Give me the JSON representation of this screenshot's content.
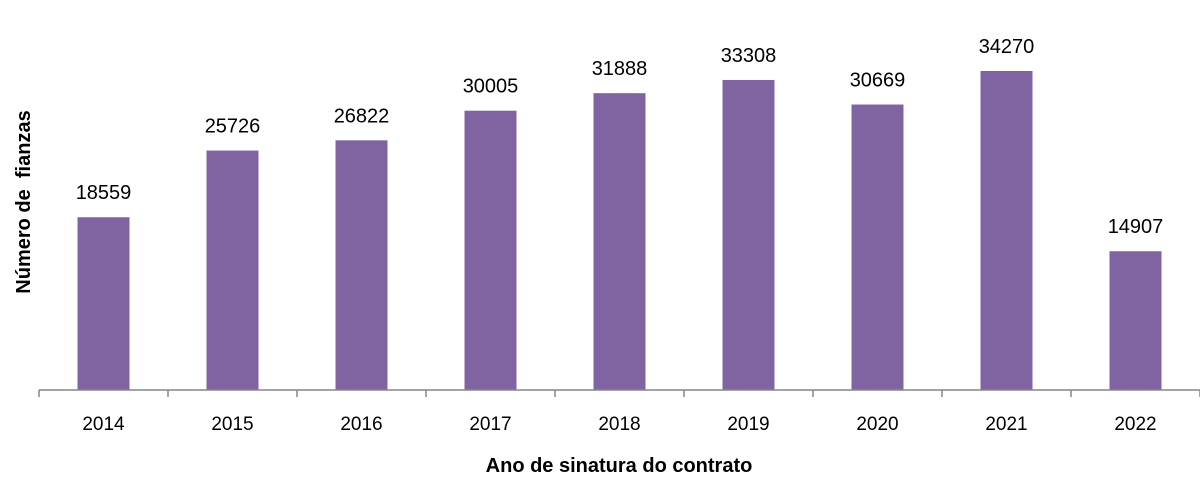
{
  "chart_data": {
    "type": "bar",
    "categories": [
      "2014",
      "2015",
      "2016",
      "2017",
      "2018",
      "2019",
      "2020",
      "2021",
      "2022"
    ],
    "values": [
      18559,
      25726,
      26822,
      30005,
      31888,
      33308,
      30669,
      34270,
      14907
    ],
    "xlabel": "Ano de sinatura do contrato",
    "ylabel": "Número de  fianzas",
    "ylim": [
      0,
      36000
    ],
    "grid": false,
    "legend": "none",
    "bar_color": "#8064A2",
    "axis_color": "#868686"
  }
}
